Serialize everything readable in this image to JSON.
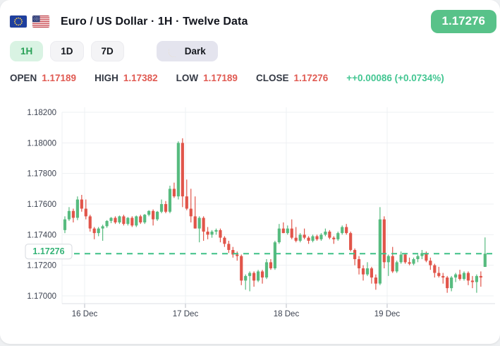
{
  "header": {
    "title": "Euro / US Dollar · 1H · Twelve Data",
    "price_badge": "1.17276",
    "flags": [
      "eu-flag",
      "us-flag"
    ]
  },
  "toolbar": {
    "timeframes": [
      {
        "label": "1H",
        "active": true
      },
      {
        "label": "1D",
        "active": false
      },
      {
        "label": "7D",
        "active": false
      }
    ],
    "theme_toggle": {
      "label": "Dark",
      "icon": "moon-icon"
    }
  },
  "stats": {
    "items": [
      {
        "label": "OPEN",
        "value": "1.17189"
      },
      {
        "label": "HIGH",
        "value": "1.17382"
      },
      {
        "label": "LOW",
        "value": "1.17189"
      },
      {
        "label": "CLOSE",
        "value": "1.17276"
      }
    ],
    "change": "++0.00086 (+0.0734%)"
  },
  "colors": {
    "up": "#57bb7f",
    "down": "#e1554a",
    "badge_green": "#58c289",
    "dashed_line": "#3fc187",
    "price_label_text": "#34b377",
    "value_red": "#e05a52",
    "change_green": "#43c692",
    "grid": "#eef0f3",
    "axis_line": "#dcdfe4",
    "tick_text": "#3c4250"
  },
  "chart_data": {
    "type": "candlestick",
    "title": "EUR/USD hourly candles",
    "ylim": [
      1.17,
      1.182
    ],
    "y_ticks": [
      1.17,
      1.172,
      1.174,
      1.176,
      1.178,
      1.18,
      1.182
    ],
    "x_ticks": [
      {
        "label": "16 Dec",
        "index": 4.7
      },
      {
        "label": "17 Dec",
        "index": 28.7
      },
      {
        "label": "18 Dec",
        "index": 52.7
      },
      {
        "label": "19 Dec",
        "index": 76.7
      }
    ],
    "current_price": 1.17276,
    "current_price_label": "1.17276",
    "candles": [
      [
        1.1743,
        1.1752,
        1.1741,
        1.175
      ],
      [
        1.175,
        1.1758,
        1.1749,
        1.17555
      ],
      [
        1.17555,
        1.1757,
        1.1748,
        1.1751
      ],
      [
        1.1751,
        1.1765,
        1.17495,
        1.1763
      ],
      [
        1.1763,
        1.1766,
        1.1755,
        1.1757
      ],
      [
        1.1757,
        1.1763,
        1.175,
        1.1752
      ],
      [
        1.1752,
        1.1753,
        1.1742,
        1.1744
      ],
      [
        1.1744,
        1.1745,
        1.1737,
        1.1741
      ],
      [
        1.1741,
        1.1745,
        1.1739,
        1.1744
      ],
      [
        1.1744,
        1.17465,
        1.1736,
        1.17455
      ],
      [
        1.17455,
        1.17495,
        1.17445,
        1.1749
      ],
      [
        1.1749,
        1.17515,
        1.17475,
        1.1751
      ],
      [
        1.1751,
        1.1752,
        1.1747,
        1.1748
      ],
      [
        1.1748,
        1.17525,
        1.1747,
        1.1752
      ],
      [
        1.1752,
        1.1753,
        1.1746,
        1.1747
      ],
      [
        1.1747,
        1.17515,
        1.1746,
        1.1751
      ],
      [
        1.1751,
        1.1752,
        1.1745,
        1.1746
      ],
      [
        1.1746,
        1.17525,
        1.1745,
        1.1752
      ],
      [
        1.1752,
        1.1753,
        1.1747,
        1.1748
      ],
      [
        1.1748,
        1.17535,
        1.1747,
        1.1753
      ],
      [
        1.1753,
        1.1756,
        1.1752,
        1.17555
      ],
      [
        1.17555,
        1.17565,
        1.1746,
        1.175
      ],
      [
        1.175,
        1.17555,
        1.1749,
        1.1755
      ],
      [
        1.1755,
        1.1763,
        1.1754,
        1.176
      ],
      [
        1.176,
        1.1762,
        1.1754,
        1.1755
      ],
      [
        1.1755,
        1.1772,
        1.1754,
        1.177
      ],
      [
        1.177,
        1.1774,
        1.1764,
        1.1765
      ],
      [
        1.1765,
        1.1801,
        1.1763,
        1.18
      ],
      [
        1.18,
        1.1803,
        1.1758,
        1.1765
      ],
      [
        1.1765,
        1.1776,
        1.1756,
        1.1757
      ],
      [
        1.1757,
        1.177,
        1.1748,
        1.1752
      ],
      [
        1.1752,
        1.1765,
        1.1744,
        1.1744
      ],
      [
        1.1744,
        1.1752,
        1.1735,
        1.1751
      ],
      [
        1.1751,
        1.1752,
        1.1736,
        1.1742
      ],
      [
        1.1742,
        1.1745,
        1.1737,
        1.174
      ],
      [
        1.174,
        1.1743,
        1.1738,
        1.1742
      ],
      [
        1.1742,
        1.1744,
        1.174,
        1.1743
      ],
      [
        1.1743,
        1.1744,
        1.1735,
        1.1738
      ],
      [
        1.1738,
        1.1739,
        1.1732,
        1.1734
      ],
      [
        1.1734,
        1.1736,
        1.1728,
        1.173
      ],
      [
        1.173,
        1.1732,
        1.1725,
        1.1727
      ],
      [
        1.1727,
        1.1729,
        1.1723,
        1.1726
      ],
      [
        1.1726,
        1.1727,
        1.1707,
        1.171
      ],
      [
        1.171,
        1.1714,
        1.1704,
        1.1713
      ],
      [
        1.1713,
        1.1716,
        1.1703,
        1.1715
      ],
      [
        1.1715,
        1.1716,
        1.1706,
        1.171
      ],
      [
        1.171,
        1.1717,
        1.1709,
        1.1716
      ],
      [
        1.1716,
        1.1717,
        1.1708,
        1.1712
      ],
      [
        1.1712,
        1.1724,
        1.1711,
        1.1722
      ],
      [
        1.1722,
        1.1724,
        1.1717,
        1.1718
      ],
      [
        1.1718,
        1.1736,
        1.1717,
        1.1735
      ],
      [
        1.1735,
        1.1747,
        1.1734,
        1.1744
      ],
      [
        1.1744,
        1.1748,
        1.1741,
        1.1741
      ],
      [
        1.1741,
        1.1746,
        1.174,
        1.1744
      ],
      [
        1.1744,
        1.175,
        1.1737,
        1.1738
      ],
      [
        1.1738,
        1.1745,
        1.1735,
        1.1736
      ],
      [
        1.1736,
        1.1741,
        1.1735,
        1.174
      ],
      [
        1.174,
        1.1744,
        1.1737,
        1.1738
      ],
      [
        1.1738,
        1.1739,
        1.1734,
        1.1736
      ],
      [
        1.1736,
        1.174,
        1.1735,
        1.1739
      ],
      [
        1.1739,
        1.174,
        1.1736,
        1.1737
      ],
      [
        1.1737,
        1.1741,
        1.1736,
        1.174
      ],
      [
        1.174,
        1.1744,
        1.1739,
        1.1742
      ],
      [
        1.1742,
        1.1743,
        1.1737,
        1.1738
      ],
      [
        1.1738,
        1.1739,
        1.1734,
        1.1737
      ],
      [
        1.1737,
        1.1742,
        1.1736,
        1.1741
      ],
      [
        1.1741,
        1.1746,
        1.174,
        1.1745
      ],
      [
        1.1745,
        1.1747,
        1.174,
        1.1741
      ],
      [
        1.1741,
        1.1742,
        1.1729,
        1.173
      ],
      [
        1.173,
        1.1731,
        1.172,
        1.1724
      ],
      [
        1.1724,
        1.1726,
        1.1714,
        1.1718
      ],
      [
        1.1718,
        1.172,
        1.171,
        1.1714
      ],
      [
        1.1714,
        1.1722,
        1.1713,
        1.1718
      ],
      [
        1.1718,
        1.1719,
        1.1708,
        1.1712
      ],
      [
        1.1712,
        1.1714,
        1.1704,
        1.1708
      ],
      [
        1.1708,
        1.1758,
        1.1707,
        1.175
      ],
      [
        1.175,
        1.1752,
        1.1718,
        1.1722
      ],
      [
        1.1722,
        1.1727,
        1.1713,
        1.1726
      ],
      [
        1.1726,
        1.1732,
        1.1715,
        1.1716
      ],
      [
        1.1716,
        1.1723,
        1.1715,
        1.1722
      ],
      [
        1.1722,
        1.1729,
        1.1721,
        1.1727
      ],
      [
        1.1727,
        1.1728,
        1.1721,
        1.1722
      ],
      [
        1.1722,
        1.1725,
        1.172,
        1.1721
      ],
      [
        1.1721,
        1.1725,
        1.172,
        1.1724
      ],
      [
        1.1724,
        1.1727,
        1.1722,
        1.1726
      ],
      [
        1.1726,
        1.173,
        1.1724,
        1.1728
      ],
      [
        1.1728,
        1.1729,
        1.1722,
        1.1723
      ],
      [
        1.1723,
        1.1725,
        1.1717,
        1.172
      ],
      [
        1.172,
        1.1721,
        1.1712,
        1.1715
      ],
      [
        1.1715,
        1.1719,
        1.1712,
        1.1713
      ],
      [
        1.1713,
        1.1715,
        1.1708,
        1.1712
      ],
      [
        1.1712,
        1.1713,
        1.1702,
        1.1705
      ],
      [
        1.1705,
        1.1713,
        1.1703,
        1.1712
      ],
      [
        1.1712,
        1.1715,
        1.1709,
        1.1714
      ],
      [
        1.1714,
        1.1717,
        1.171,
        1.1711
      ],
      [
        1.1711,
        1.1716,
        1.171,
        1.1715
      ],
      [
        1.1715,
        1.1716,
        1.1707,
        1.171
      ],
      [
        1.171,
        1.1713,
        1.1705,
        1.1709
      ],
      [
        1.1709,
        1.1714,
        1.1702,
        1.1713
      ],
      [
        1.1713,
        1.1716,
        1.1706,
        1.1712
      ],
      [
        1.17189,
        1.17382,
        1.17189,
        1.17276
      ]
    ]
  }
}
